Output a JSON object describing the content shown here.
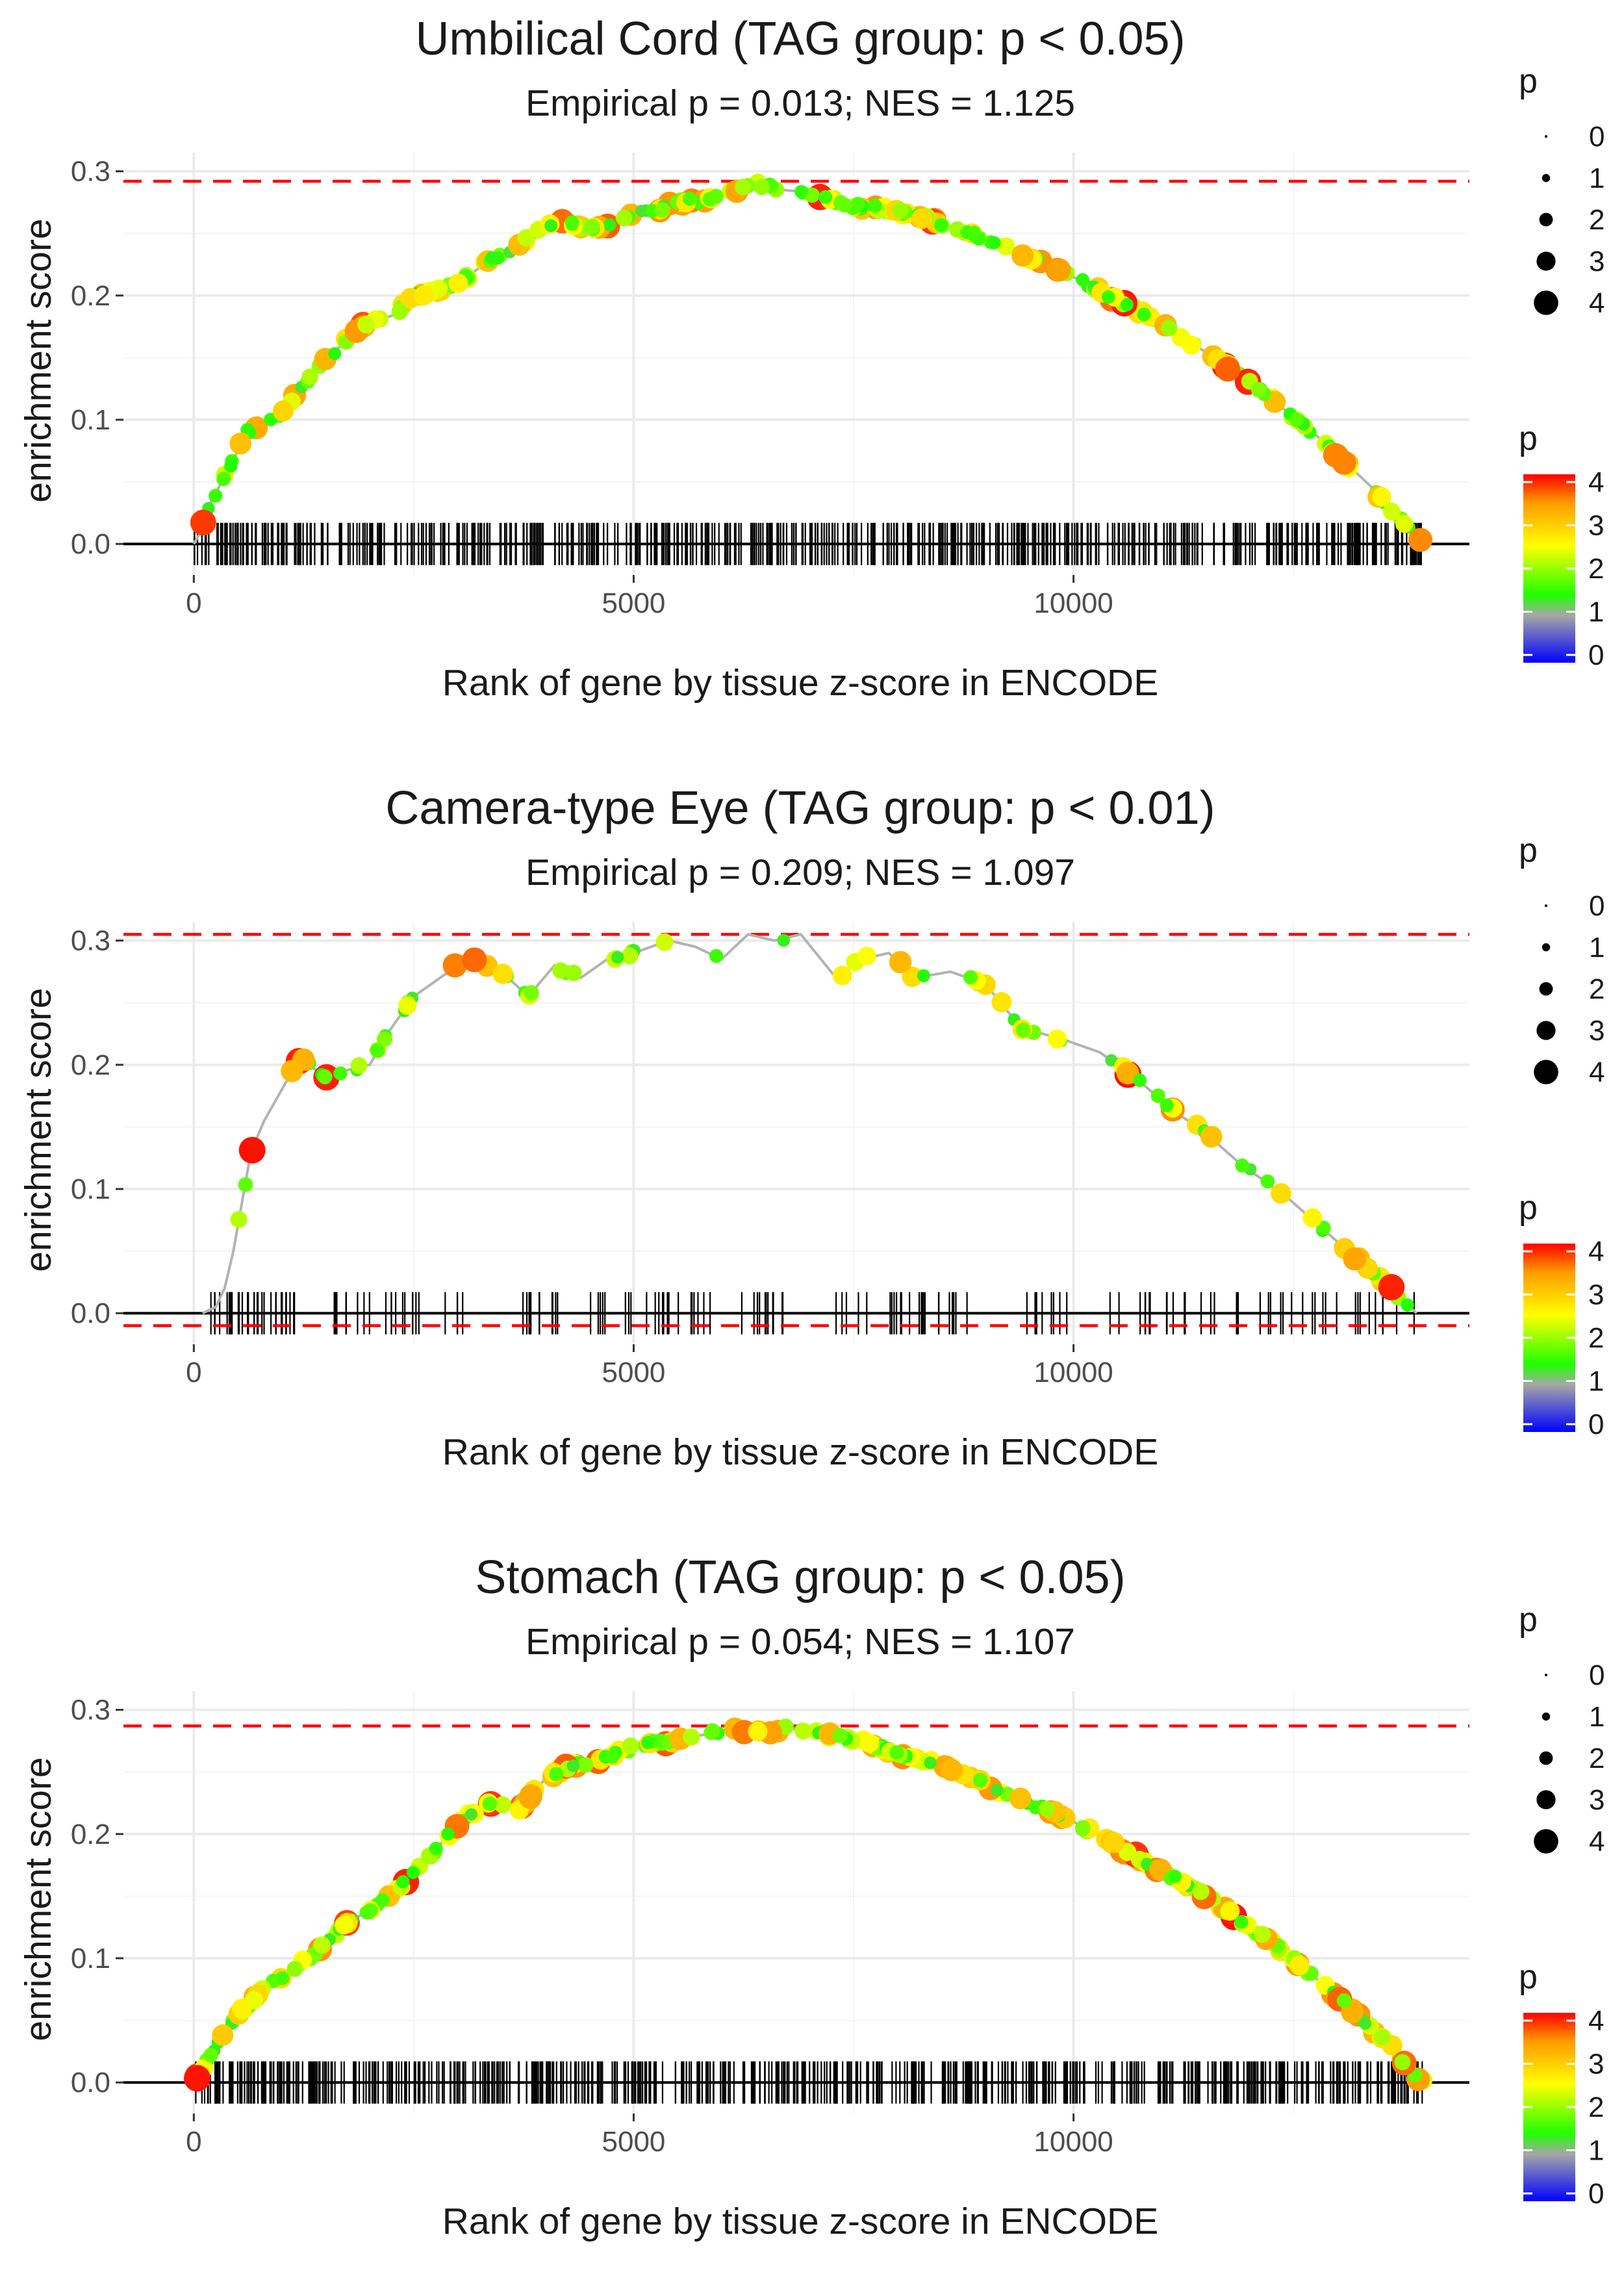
{
  "chart_data": [
    {
      "type": "line",
      "title": "Umbilical Cord (TAG group: p < 0.05)",
      "subtitle": "Empirical p = 0.013; NES = 1.125",
      "xlabel": "Rank of gene by tissue z-score in ENCODE",
      "ylabel": "enrichment score",
      "xlim": [
        -800,
        14500
      ],
      "ylim": [
        -0.025,
        0.315
      ],
      "x_ticks": [
        0,
        5000,
        10000
      ],
      "x_tick_labels": [
        "0",
        "5000",
        "10000"
      ],
      "y_ticks": [
        0.0,
        0.1,
        0.2,
        0.3
      ],
      "y_tick_labels": [
        "0.0",
        "0.1",
        "0.2",
        "0.3"
      ],
      "max_es_line": 0.292,
      "min_es_line": null,
      "rank_max": 14000,
      "curve_points": [
        [
          0,
          0
        ],
        [
          80,
          0.01
        ],
        [
          200,
          0.035
        ],
        [
          400,
          0.06
        ],
        [
          600,
          0.09
        ],
        [
          900,
          0.1
        ],
        [
          1100,
          0.115
        ],
        [
          1400,
          0.14
        ],
        [
          1600,
          0.155
        ],
        [
          1900,
          0.175
        ],
        [
          2100,
          0.18
        ],
        [
          2300,
          0.185
        ],
        [
          2500,
          0.2
        ],
        [
          2800,
          0.205
        ],
        [
          3000,
          0.21
        ],
        [
          3200,
          0.22
        ],
        [
          3400,
          0.23
        ],
        [
          3700,
          0.24
        ],
        [
          3950,
          0.255
        ],
        [
          4200,
          0.26
        ],
        [
          4500,
          0.253
        ],
        [
          4800,
          0.258
        ],
        [
          5000,
          0.265
        ],
        [
          5300,
          0.27
        ],
        [
          5500,
          0.275
        ],
        [
          5800,
          0.277
        ],
        [
          6000,
          0.28
        ],
        [
          6200,
          0.285
        ],
        [
          6400,
          0.29
        ],
        [
          6700,
          0.285
        ],
        [
          7000,
          0.283
        ],
        [
          7400,
          0.273
        ],
        [
          7800,
          0.27
        ],
        [
          8200,
          0.265
        ],
        [
          8500,
          0.258
        ],
        [
          8900,
          0.248
        ],
        [
          9300,
          0.237
        ],
        [
          9700,
          0.225
        ],
        [
          10000,
          0.215
        ],
        [
          10400,
          0.2
        ],
        [
          10800,
          0.185
        ],
        [
          11200,
          0.168
        ],
        [
          11600,
          0.15
        ],
        [
          12000,
          0.13
        ],
        [
          12400,
          0.108
        ],
        [
          12800,
          0.085
        ],
        [
          13100,
          0.065
        ],
        [
          13400,
          0.045
        ],
        [
          13700,
          0.02
        ],
        [
          14000,
          0.0
        ]
      ],
      "rug_count": 560,
      "rug_segments": [
        [
          0,
          14000,
          1
        ]
      ],
      "colorbar_title": "p",
      "size_legend_title": "p",
      "size_legend_values": [
        "0",
        "1",
        "2",
        "3",
        "4"
      ],
      "colorbar_labels": [
        "4",
        "3",
        "2",
        "1",
        "0"
      ],
      "p_range": [
        0,
        4
      ],
      "seed": 11
    },
    {
      "type": "line",
      "title": "Camera-type Eye (TAG group: p < 0.01)",
      "subtitle": "Empirical p = 0.209; NES = 1.097",
      "xlabel": "Rank of gene by tissue z-score in ENCODE",
      "ylabel": "enrichment score",
      "xlim": [
        -800,
        14500
      ],
      "ylim": [
        -0.025,
        0.315
      ],
      "x_ticks": [
        0,
        5000,
        10000
      ],
      "x_tick_labels": [
        "0",
        "5000",
        "10000"
      ],
      "y_ticks": [
        0.0,
        0.1,
        0.2,
        0.3
      ],
      "y_tick_labels": [
        "0.0",
        "0.1",
        "0.2",
        "0.3"
      ],
      "max_es_line": 0.305,
      "min_es_line": -0.01,
      "rank_max": 14000,
      "curve_points": [
        [
          100,
          0
        ],
        [
          250,
          0.005
        ],
        [
          350,
          0.02
        ],
        [
          450,
          0.05
        ],
        [
          550,
          0.09
        ],
        [
          650,
          0.13
        ],
        [
          800,
          0.155
        ],
        [
          1000,
          0.18
        ],
        [
          1200,
          0.205
        ],
        [
          1500,
          0.19
        ],
        [
          1700,
          0.195
        ],
        [
          2000,
          0.2
        ],
        [
          2200,
          0.225
        ],
        [
          2500,
          0.255
        ],
        [
          2800,
          0.27
        ],
        [
          3100,
          0.285
        ],
        [
          3500,
          0.275
        ],
        [
          3800,
          0.255
        ],
        [
          4100,
          0.28
        ],
        [
          4400,
          0.27
        ],
        [
          4700,
          0.285
        ],
        [
          5000,
          0.29
        ],
        [
          5400,
          0.3
        ],
        [
          5700,
          0.295
        ],
        [
          6000,
          0.285
        ],
        [
          6300,
          0.305
        ],
        [
          6600,
          0.3
        ],
        [
          6900,
          0.305
        ],
        [
          7300,
          0.27
        ],
        [
          7600,
          0.285
        ],
        [
          7900,
          0.29
        ],
        [
          8200,
          0.27
        ],
        [
          8600,
          0.275
        ],
        [
          9000,
          0.265
        ],
        [
          9400,
          0.23
        ],
        [
          9900,
          0.22
        ],
        [
          10300,
          0.21
        ],
        [
          10700,
          0.19
        ],
        [
          11100,
          0.165
        ],
        [
          11500,
          0.145
        ],
        [
          11900,
          0.12
        ],
        [
          12400,
          0.095
        ],
        [
          12800,
          0.07
        ],
        [
          13200,
          0.045
        ],
        [
          13600,
          0.02
        ],
        [
          13900,
          0.0
        ]
      ],
      "rug_count": 175,
      "rug_segments": [
        [
          150,
          1250,
          3
        ],
        [
          1500,
          3100,
          1.4
        ],
        [
          3700,
          6700,
          1.4
        ],
        [
          7300,
          8900,
          1.4
        ],
        [
          9400,
          13900,
          1
        ]
      ],
      "colorbar_title": "p",
      "size_legend_title": "p",
      "size_legend_values": [
        "0",
        "1",
        "2",
        "3",
        "4"
      ],
      "colorbar_labels": [
        "4",
        "3",
        "2",
        "1",
        "0"
      ],
      "p_range": [
        0,
        4
      ],
      "seed": 23
    },
    {
      "type": "line",
      "title": "Stomach (TAG group: p < 0.05)",
      "subtitle": "Empirical p = 0.054; NES = 1.107",
      "xlabel": "Rank of gene by tissue z-score in ENCODE",
      "ylabel": "enrichment score",
      "xlim": [
        -800,
        14500
      ],
      "ylim": [
        -0.025,
        0.315
      ],
      "x_ticks": [
        0,
        5000,
        10000
      ],
      "x_tick_labels": [
        "0",
        "5000",
        "10000"
      ],
      "y_ticks": [
        0.0,
        0.1,
        0.2,
        0.3
      ],
      "y_tick_labels": [
        "0.0",
        "0.1",
        "0.2",
        "0.3"
      ],
      "max_es_line": 0.287,
      "min_es_line": null,
      "rank_max": 14000,
      "curve_points": [
        [
          0,
          0
        ],
        [
          100,
          0.01
        ],
        [
          300,
          0.035
        ],
        [
          500,
          0.055
        ],
        [
          800,
          0.075
        ],
        [
          1100,
          0.09
        ],
        [
          1400,
          0.105
        ],
        [
          1700,
          0.125
        ],
        [
          2000,
          0.14
        ],
        [
          2300,
          0.155
        ],
        [
          2600,
          0.175
        ],
        [
          2900,
          0.2
        ],
        [
          3100,
          0.215
        ],
        [
          3400,
          0.225
        ],
        [
          3700,
          0.22
        ],
        [
          4000,
          0.245
        ],
        [
          4300,
          0.255
        ],
        [
          4600,
          0.26
        ],
        [
          5000,
          0.27
        ],
        [
          5400,
          0.275
        ],
        [
          5800,
          0.28
        ],
        [
          6100,
          0.285
        ],
        [
          6400,
          0.282
        ],
        [
          6800,
          0.285
        ],
        [
          7200,
          0.28
        ],
        [
          7600,
          0.275
        ],
        [
          8000,
          0.265
        ],
        [
          8500,
          0.255
        ],
        [
          9000,
          0.24
        ],
        [
          9500,
          0.225
        ],
        [
          10000,
          0.21
        ],
        [
          10500,
          0.19
        ],
        [
          11000,
          0.17
        ],
        [
          11500,
          0.15
        ],
        [
          12000,
          0.125
        ],
        [
          12500,
          0.1
        ],
        [
          12900,
          0.075
        ],
        [
          13300,
          0.05
        ],
        [
          13600,
          0.03
        ],
        [
          13900,
          0.005
        ],
        [
          14000,
          0.0
        ]
      ],
      "rug_count": 600,
      "rug_segments": [
        [
          0,
          14000,
          1
        ]
      ],
      "colorbar_title": "p",
      "size_legend_title": "p",
      "size_legend_values": [
        "0",
        "1",
        "2",
        "3",
        "4"
      ],
      "colorbar_labels": [
        "4",
        "3",
        "2",
        "1",
        "0"
      ],
      "p_range": [
        0,
        4
      ],
      "seed": 37
    }
  ]
}
